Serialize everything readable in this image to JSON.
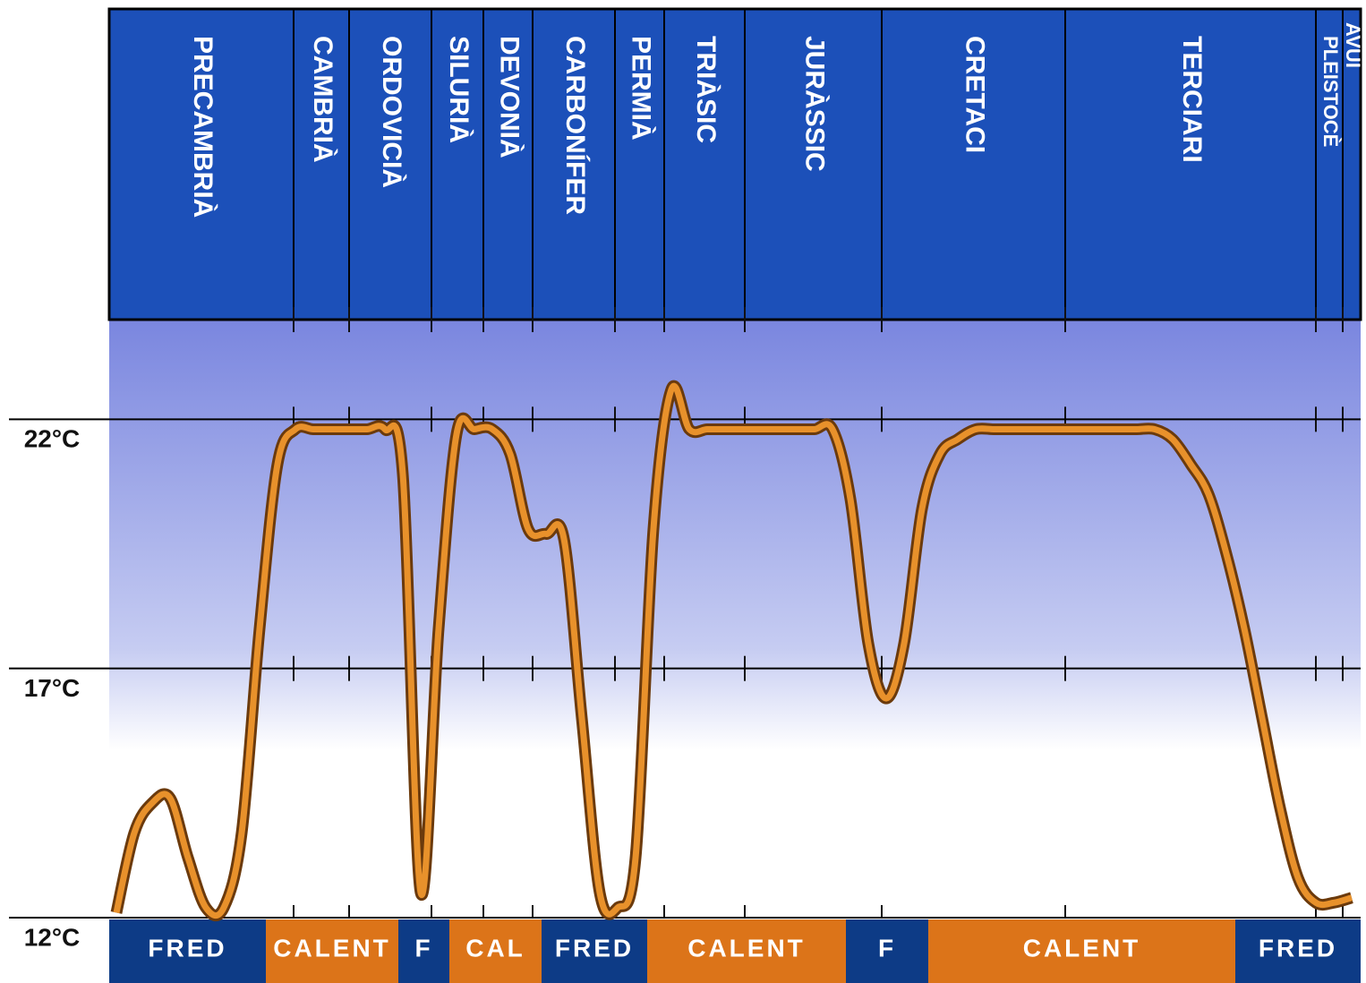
{
  "chart_data": {
    "type": "line",
    "periods": [
      "PRECAMBRIÀ",
      "CAMBRIÀ",
      "ORDOVICIÀ",
      "SILURIÀ",
      "DEVONIÀ",
      "CARBONÍFER",
      "PERMIÀ",
      "TRIÀSIC",
      "JURÀSSIC",
      "CRETACI",
      "TERCIARI",
      "PLEISTOCÈ",
      "AVUI"
    ],
    "climate_bands": [
      "FRED",
      "CALENT",
      "F",
      "CAL",
      "FRED",
      "CALENT",
      "F",
      "CALENT",
      "FRED"
    ],
    "series": [
      {
        "color": "#e8912b",
        "values": [
          12.1,
          13.7,
          14.3,
          14.4,
          13.2,
          12.2,
          12.2,
          13.7,
          17.8,
          21.1,
          21.8,
          21.8,
          21.8,
          21.8,
          21.8,
          21.8,
          20.9,
          12.5,
          17.8,
          21.7,
          21.8,
          21.8,
          21.3,
          19.8,
          19.7,
          19.6,
          16.0,
          12.5,
          12.2,
          13.2,
          19.8,
          22.6,
          21.8,
          21.8,
          21.8,
          21.8,
          21.8,
          21.8,
          21.8,
          21.8,
          21.8,
          20.4,
          17.5,
          16.4,
          17.5,
          20.2,
          21.3,
          21.6,
          21.8,
          21.8,
          21.8,
          21.8,
          21.8,
          21.8,
          21.8,
          21.8,
          21.8,
          21.8,
          21.8,
          21.6,
          21.1,
          20.5,
          19.3,
          17.8,
          16.0,
          14.2,
          12.8,
          12.3,
          12.3,
          12.4
        ]
      }
    ],
    "ylim": [
      12,
      24
    ],
    "yticks": [
      {
        "value": 12,
        "label": "12°C"
      },
      {
        "value": 17,
        "label": "17°C"
      },
      {
        "value": 22,
        "label": "22°C"
      }
    ],
    "grid": true
  }
}
